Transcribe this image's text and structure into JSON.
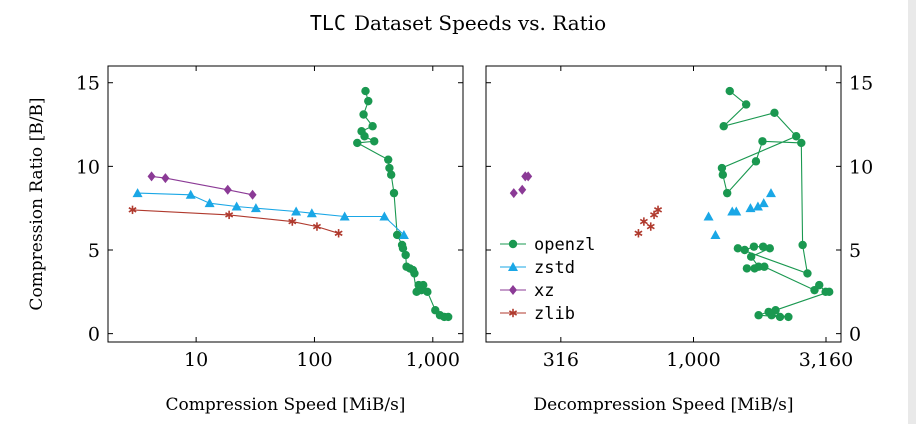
{
  "figure": {
    "title_code": "TLC",
    "title_rest": "Dataset Speeds vs. Ratio"
  },
  "colors": {
    "openzl": "#1a9850",
    "zstd": "#1aa7e6",
    "xz": "#8b3a96",
    "zlib": "#b03a2e",
    "axis": "#000000"
  },
  "chart_data": [
    {
      "type": "scatter",
      "title": "",
      "xlabel": "Compression Speed [MiB/s]",
      "ylabel": "Compression Ratio [B/B]",
      "xscale": "log",
      "xlim": [
        1.8,
        1800
      ],
      "ylim": [
        -0.5,
        16
      ],
      "x_ticks": [
        10,
        100,
        1000
      ],
      "x_tick_labels": [
        "10",
        "100",
        "1,000"
      ],
      "y_ticks": [
        0,
        5,
        10,
        15
      ],
      "y_tick_labels": [
        "0",
        "5",
        "10",
        "15"
      ],
      "y_axis_side": "left",
      "grid": false,
      "series": [
        {
          "name": "openzl",
          "marker": "circle",
          "connected": true,
          "x": [
            270,
            285,
            260,
            310,
            250,
            265,
            320,
            230,
            420,
            430,
            445,
            470,
            500,
            550,
            560,
            590,
            600,
            640,
            700,
            680,
            730,
            760,
            800,
            830,
            900,
            1050,
            1150,
            1250,
            1350
          ],
          "y": [
            14.5,
            13.9,
            13.1,
            12.4,
            12.1,
            11.8,
            11.5,
            11.4,
            10.4,
            9.9,
            9.5,
            8.4,
            5.9,
            5.3,
            5.1,
            4.7,
            4.0,
            3.9,
            3.6,
            3.8,
            2.5,
            2.9,
            2.6,
            2.9,
            2.5,
            1.4,
            1.1,
            1.0,
            1.0
          ]
        },
        {
          "name": "zstd",
          "marker": "triangle",
          "connected": true,
          "x": [
            3.2,
            9,
            13,
            22,
            32,
            70,
            95,
            180,
            390,
            570
          ],
          "y": [
            8.4,
            8.3,
            7.8,
            7.6,
            7.5,
            7.3,
            7.2,
            7.0,
            7.0,
            5.9
          ]
        },
        {
          "name": "xz",
          "marker": "diamond",
          "connected": true,
          "x": [
            4.2,
            5.5,
            18.5,
            30
          ],
          "y": [
            9.4,
            9.3,
            8.6,
            8.3
          ]
        },
        {
          "name": "zlib",
          "marker": "star",
          "connected": true,
          "x": [
            2.9,
            19,
            65,
            105,
            160
          ],
          "y": [
            7.4,
            7.1,
            6.7,
            6.4,
            6.0
          ]
        }
      ]
    },
    {
      "type": "scatter",
      "title": "",
      "xlabel": "Decompression Speed [MiB/s]",
      "ylabel": "",
      "xscale": "log",
      "xlim": [
        165,
        3600
      ],
      "ylim": [
        -0.5,
        16
      ],
      "x_ticks": [
        316,
        1000,
        3160
      ],
      "x_tick_labels": [
        "316",
        "1,000",
        "3,160"
      ],
      "y_ticks": [
        0,
        5,
        10,
        15
      ],
      "y_tick_labels": [
        "0",
        "5",
        "10",
        "15"
      ],
      "y_axis_side": "right",
      "grid": false,
      "legend_position": "lower-left",
      "series": [
        {
          "name": "openzl",
          "marker": "circle",
          "connected": true,
          "x": [
            1370,
            1580,
            1300,
            2020,
            2440,
            1280,
            1290,
            1340,
            1720,
            1820,
            2550,
            2580,
            2690,
            1470,
            1560,
            1690,
            1830,
            1940,
            1650,
            1760,
            1590,
            1700,
            1850,
            2860,
            2980,
            3150,
            3250,
            2040,
            1920,
            1760,
            2120,
            2280,
            1970
          ],
          "y": [
            14.5,
            13.7,
            12.4,
            13.2,
            11.8,
            9.9,
            9.5,
            8.4,
            10.3,
            11.5,
            11.4,
            5.3,
            3.6,
            5.1,
            5.0,
            5.2,
            5.2,
            5.1,
            4.6,
            4.0,
            3.9,
            3.9,
            4.0,
            2.6,
            2.9,
            2.5,
            2.5,
            1.4,
            1.3,
            1.1,
            1.0,
            1.0,
            1.1
          ]
        },
        {
          "name": "zstd",
          "marker": "triangle",
          "connected": false,
          "x": [
            1140,
            1210,
            1400,
            1450,
            1640,
            1750,
            1840,
            1960
          ],
          "y": [
            7.0,
            5.9,
            7.3,
            7.3,
            7.5,
            7.6,
            7.8,
            8.4
          ]
        },
        {
          "name": "xz",
          "marker": "diamond",
          "connected": false,
          "x": [
            210,
            226,
            232,
            238
          ],
          "y": [
            8.4,
            8.6,
            9.4,
            9.4
          ]
        },
        {
          "name": "zlib",
          "marker": "star",
          "connected": false,
          "x": [
            620,
            650,
            690,
            710,
            735
          ],
          "y": [
            6.0,
            6.7,
            6.4,
            7.1,
            7.4
          ]
        }
      ]
    }
  ]
}
